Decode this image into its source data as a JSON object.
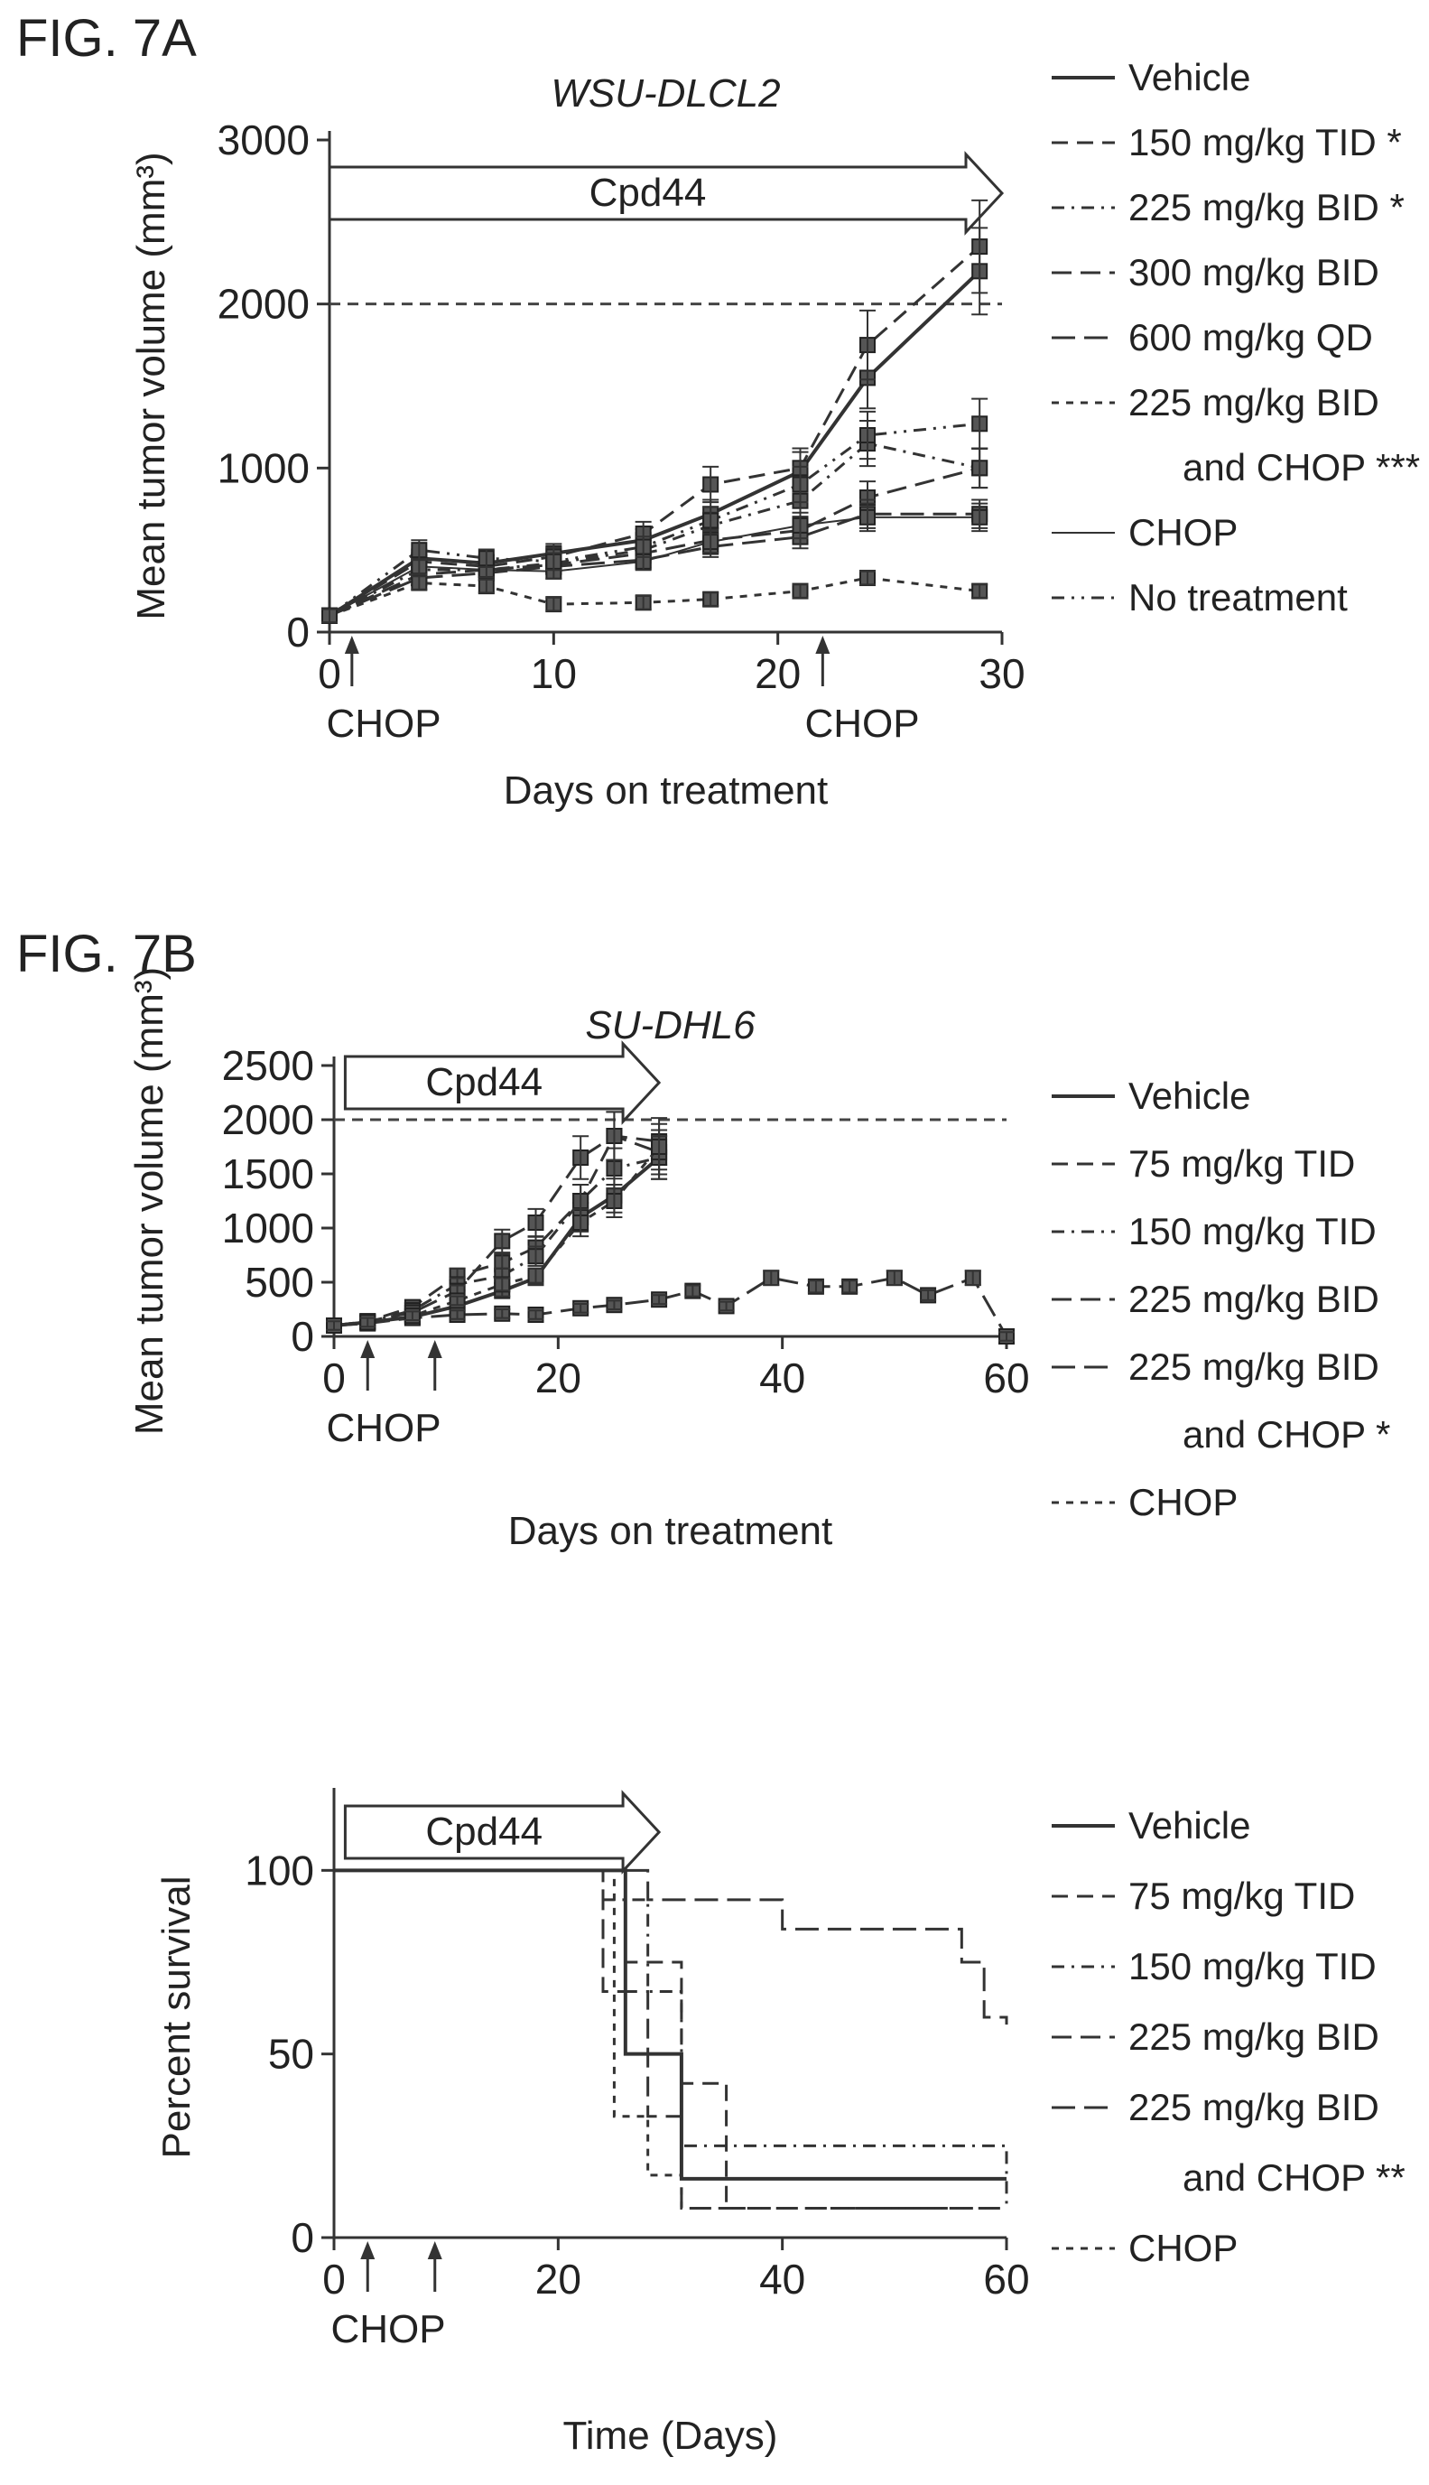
{
  "chart_data": [
    {
      "type": "line",
      "figure_label": "FIG. 7A",
      "title": "WSU-DLCL2",
      "xlabel": "Days on treatment",
      "ylabel": "Mean tumor volume (mm³)",
      "xlim": [
        0,
        30
      ],
      "ylim": [
        0,
        3000
      ],
      "xticks": [
        "0",
        "10",
        "20",
        "30"
      ],
      "yticks": [
        "0",
        "1000",
        "2000",
        "3000"
      ],
      "threshold": 2000,
      "treatment_arrow": {
        "label": "Cpd44",
        "from": 0,
        "to": 30
      },
      "chop_doses": [
        1,
        22
      ],
      "chop_label": "CHOP",
      "legend_position": "right",
      "x": [
        0,
        4,
        7,
        10,
        14,
        17,
        21,
        24,
        29
      ],
      "series": [
        {
          "name": "Vehicle",
          "values": [
            100,
            450,
            420,
            480,
            560,
            720,
            980,
            1550,
            2200
          ]
        },
        {
          "name": "150 mg/kg TID *",
          "values": [
            100,
            430,
            400,
            460,
            600,
            900,
            1000,
            1750,
            2350
          ]
        },
        {
          "name": "225 mg/kg BID *",
          "values": [
            100,
            380,
            380,
            420,
            500,
            650,
            800,
            1150,
            1000
          ]
        },
        {
          "name": "300 mg/kg BID",
          "values": [
            100,
            350,
            380,
            410,
            480,
            560,
            620,
            820,
            1000
          ]
        },
        {
          "name": "600 mg/kg QD",
          "values": [
            100,
            330,
            360,
            400,
            440,
            520,
            580,
            720,
            720
          ]
        },
        {
          "name": "225 mg/kg BID and CHOP ***",
          "values": [
            100,
            300,
            280,
            170,
            180,
            200,
            250,
            330,
            250
          ]
        },
        {
          "name": "CHOP",
          "values": [
            100,
            400,
            380,
            370,
            430,
            550,
            650,
            700,
            700
          ]
        },
        {
          "name": "No treatment",
          "values": [
            100,
            500,
            450,
            430,
            520,
            680,
            900,
            1200,
            1270
          ]
        }
      ]
    },
    {
      "type": "line",
      "figure_label": "FIG. 7B",
      "title": "SU-DHL6",
      "xlabel": "Days on treatment",
      "ylabel": "Mean tumor volume (mm³)",
      "xlim": [
        0,
        60
      ],
      "ylim": [
        0,
        2500
      ],
      "xticks": [
        "0",
        "20",
        "40",
        "60"
      ],
      "yticks": [
        "0",
        "500",
        "1000",
        "1500",
        "2000",
        "2500"
      ],
      "threshold": 2000,
      "treatment_arrow": {
        "label": "Cpd44",
        "from": 1,
        "to": 29
      },
      "chop_doses": [
        3,
        9
      ],
      "chop_label": "CHOP",
      "legend_position": "right",
      "series": [
        {
          "name": "Vehicle",
          "x": [
            0,
            3,
            7,
            11,
            15,
            18,
            22,
            25,
            29
          ],
          "values": [
            100,
            130,
            180,
            280,
            420,
            540,
            1100,
            1300,
            1650
          ]
        },
        {
          "name": "75 mg/kg TID",
          "x": [
            0,
            3,
            7,
            11,
            15,
            18,
            22,
            25,
            29
          ],
          "values": [
            100,
            140,
            270,
            560,
            680,
            820,
            1250,
            1850,
            1800
          ]
        },
        {
          "name": "150 mg/kg TID",
          "x": [
            0,
            3,
            7,
            11,
            15,
            18,
            22,
            25,
            29
          ],
          "values": [
            100,
            130,
            240,
            480,
            560,
            740,
            1250,
            1550,
            1650
          ]
        },
        {
          "name": "225 mg/kg BID",
          "x": [
            0,
            3,
            7,
            11,
            15,
            18,
            22,
            25,
            29
          ],
          "values": [
            100,
            140,
            220,
            420,
            880,
            1050,
            1650,
            1850,
            1700
          ]
        },
        {
          "name": "225 mg/kg BID and CHOP *",
          "x": [
            0,
            3,
            7,
            11,
            15,
            18,
            22,
            25,
            29,
            32,
            35,
            39,
            43,
            46,
            50,
            53,
            57,
            60
          ],
          "values": [
            100,
            120,
            170,
            200,
            210,
            200,
            260,
            290,
            340,
            420,
            280,
            540,
            460,
            460,
            540,
            380,
            540,
            0
          ]
        },
        {
          "name": "CHOP",
          "x": [
            0,
            3,
            7,
            11,
            15,
            18,
            22,
            25,
            29
          ],
          "values": [
            100,
            130,
            190,
            330,
            480,
            560,
            1050,
            1250,
            1750
          ]
        }
      ]
    },
    {
      "type": "line",
      "title": "",
      "xlabel": "Time (Days)",
      "ylabel": "Percent survival",
      "xlim": [
        0,
        60
      ],
      "ylim": [
        0,
        120
      ],
      "xticks": [
        "0",
        "20",
        "40",
        "60"
      ],
      "yticks": [
        "0",
        "50",
        "100"
      ],
      "treatment_arrow": {
        "label": "Cpd44",
        "from": 1,
        "to": 29
      },
      "chop_doses": [
        3,
        9
      ],
      "chop_label": "CHOP",
      "legend_position": "right",
      "series": [
        {
          "name": "Vehicle",
          "x": [
            0,
            24,
            26,
            28,
            31,
            60
          ],
          "values": [
            100,
            100,
            50,
            50,
            16,
            16
          ]
        },
        {
          "name": "75 mg/kg TID",
          "x": [
            0,
            24,
            26,
            28,
            31,
            35,
            60
          ],
          "values": [
            100,
            100,
            75,
            75,
            42,
            8,
            8
          ]
        },
        {
          "name": "150 mg/kg TID",
          "x": [
            0,
            22,
            24,
            28,
            31,
            60
          ],
          "values": [
            100,
            100,
            92,
            67,
            25,
            8
          ]
        },
        {
          "name": "225 mg/kg BID",
          "x": [
            0,
            22,
            24,
            28,
            31,
            60
          ],
          "values": [
            100,
            100,
            67,
            33,
            8,
            8
          ]
        },
        {
          "name": "225 mg/kg BID and CHOP **",
          "x": [
            0,
            25,
            28,
            38,
            40,
            49,
            56,
            58,
            60
          ],
          "values": [
            100,
            100,
            92,
            92,
            84,
            84,
            75,
            60,
            58
          ]
        },
        {
          "name": "CHOP",
          "x": [
            0,
            22,
            25,
            28,
            31,
            60
          ],
          "values": [
            100,
            100,
            33,
            17,
            8,
            8
          ]
        }
      ]
    }
  ]
}
